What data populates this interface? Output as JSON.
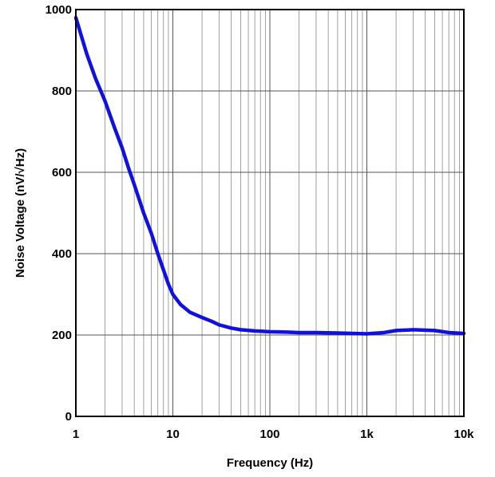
{
  "chart_data": {
    "type": "line",
    "xlabel": "Frequency (Hz)",
    "ylabel": "Noise Voltage (nV/√Hz)",
    "x_scale": "log",
    "xlim": [
      1,
      10000
    ],
    "ylim": [
      0,
      1000
    ],
    "x_ticks": [
      {
        "value": 1,
        "label": "1"
      },
      {
        "value": 10,
        "label": "10"
      },
      {
        "value": 100,
        "label": "100"
      },
      {
        "value": 1000,
        "label": "1k"
      },
      {
        "value": 10000,
        "label": "10k"
      }
    ],
    "y_ticks": [
      {
        "value": 0,
        "label": "0"
      },
      {
        "value": 200,
        "label": "200"
      },
      {
        "value": 400,
        "label": "400"
      },
      {
        "value": 600,
        "label": "600"
      },
      {
        "value": 800,
        "label": "800"
      },
      {
        "value": 1000,
        "label": "1000"
      }
    ],
    "grid": true,
    "series": [
      {
        "color": "#1010e0",
        "x": [
          1,
          1.3,
          1.6,
          2,
          2.5,
          3,
          3.5,
          4,
          5,
          6,
          7,
          8,
          9,
          10,
          12,
          15,
          20,
          25,
          30,
          40,
          50,
          70,
          100,
          150,
          200,
          300,
          500,
          700,
          1000,
          1500,
          2000,
          3000,
          5000,
          7000,
          10000
        ],
        "y": [
          980,
          890,
          830,
          775,
          710,
          660,
          610,
          570,
          500,
          450,
          400,
          360,
          325,
          300,
          275,
          256,
          243,
          234,
          225,
          217,
          213,
          210,
          208,
          207,
          206,
          206,
          205,
          204,
          203,
          206,
          211,
          213,
          211,
          206,
          204
        ]
      }
    ]
  }
}
